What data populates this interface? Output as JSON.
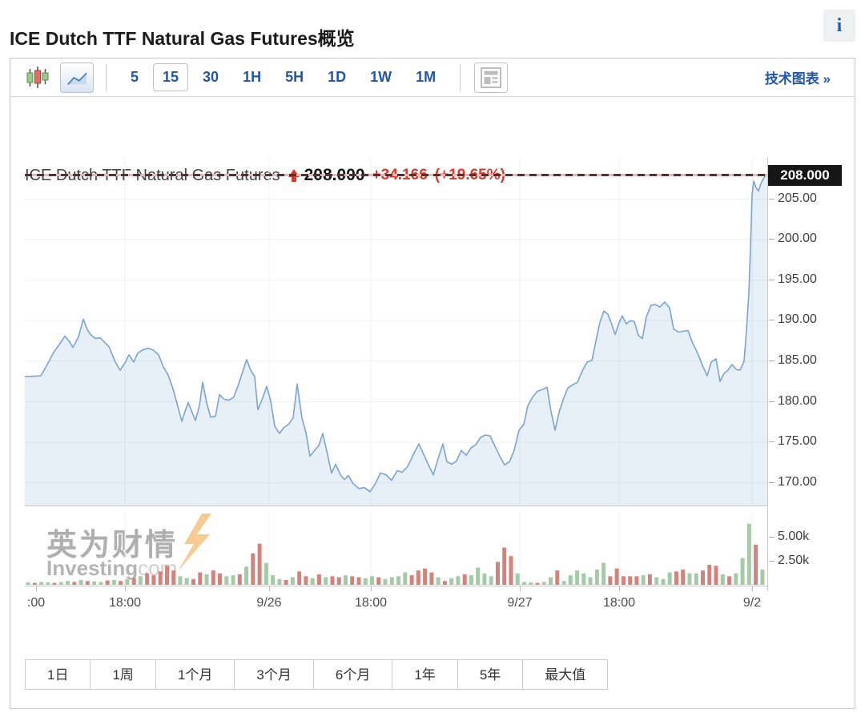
{
  "page": {
    "title": "ICE Dutch TTF Natural Gas Futures概览",
    "info_icon": "i"
  },
  "toolbar": {
    "chart_types": [
      {
        "name": "candlestick",
        "selected": false
      },
      {
        "name": "line",
        "selected": true
      }
    ],
    "intervals": [
      {
        "label": "5",
        "selected": false
      },
      {
        "label": "15",
        "selected": true
      },
      {
        "label": "30",
        "selected": false
      },
      {
        "label": "1H",
        "selected": false
      },
      {
        "label": "5H",
        "selected": false
      },
      {
        "label": "1D",
        "selected": false
      },
      {
        "label": "1W",
        "selected": false
      },
      {
        "label": "1M",
        "selected": false
      }
    ],
    "news_icon": "news-panel",
    "tech_chart_link": "技术图表 »"
  },
  "chart_header": {
    "instrument": "ICE Dutch TTF Natural Gas Futures",
    "direction": "up",
    "price": "208.000",
    "change": "+34.166",
    "change_pct": "(+19.65%)"
  },
  "chart_data": {
    "type": "area",
    "title": "ICE Dutch TTF Natural Gas Futures, 15-minute",
    "ylim": [
      167.2,
      210.2
    ],
    "y_axis": {
      "values": [
        205,
        200,
        195,
        190,
        185,
        180,
        175,
        170
      ],
      "labels": [
        "205.00",
        "200.00",
        "195.00",
        "190.00",
        "185.00",
        "180.00",
        "175.00",
        "170.00"
      ]
    },
    "current": {
      "price": 208.0,
      "label": "208.000"
    },
    "x_axis": {
      "ticks": [
        {
          "x": 14,
          "label": ":00",
          "grid": false
        },
        {
          "x": 125,
          "label": "18:00",
          "grid": true
        },
        {
          "x": 305,
          "label": "9/26",
          "grid": true
        },
        {
          "x": 432,
          "label": "18:00",
          "grid": true
        },
        {
          "x": 618,
          "label": "9/27",
          "grid": true
        },
        {
          "x": 742,
          "label": "18:00",
          "grid": true
        },
        {
          "x": 908,
          "label": "9/2",
          "grid": true
        }
      ]
    },
    "points": [
      [
        0,
        183.1
      ],
      [
        20,
        183.2
      ],
      [
        28,
        184.6
      ],
      [
        36,
        186.1
      ],
      [
        44,
        187.2
      ],
      [
        50,
        188.1
      ],
      [
        56,
        187.4
      ],
      [
        60,
        186.7
      ],
      [
        67,
        188.0
      ],
      [
        73,
        190.2
      ],
      [
        78,
        188.9
      ],
      [
        82,
        188.3
      ],
      [
        88,
        187.8
      ],
      [
        94,
        187.9
      ],
      [
        99,
        187.4
      ],
      [
        105,
        186.8
      ],
      [
        113,
        184.9
      ],
      [
        119,
        183.9
      ],
      [
        125,
        184.8
      ],
      [
        130,
        185.8
      ],
      [
        136,
        184.9
      ],
      [
        141,
        186.0
      ],
      [
        147,
        186.4
      ],
      [
        154,
        186.6
      ],
      [
        160,
        186.4
      ],
      [
        167,
        185.8
      ],
      [
        173,
        184.3
      ],
      [
        179,
        183.3
      ],
      [
        185,
        181.6
      ],
      [
        190,
        179.8
      ],
      [
        196,
        177.6
      ],
      [
        200,
        178.8
      ],
      [
        204,
        179.9
      ],
      [
        208,
        178.9
      ],
      [
        213,
        177.7
      ],
      [
        218,
        179.5
      ],
      [
        222,
        182.4
      ],
      [
        227,
        179.9
      ],
      [
        232,
        178.1
      ],
      [
        238,
        178.2
      ],
      [
        243,
        180.9
      ],
      [
        249,
        180.3
      ],
      [
        255,
        180.2
      ],
      [
        261,
        180.6
      ],
      [
        267,
        182.2
      ],
      [
        273,
        184.0
      ],
      [
        277,
        185.2
      ],
      [
        282,
        183.9
      ],
      [
        287,
        183.1
      ],
      [
        291,
        179.0
      ],
      [
        297,
        180.5
      ],
      [
        302,
        181.9
      ],
      [
        307,
        180.1
      ],
      [
        312,
        177.0
      ],
      [
        318,
        176.1
      ],
      [
        323,
        176.8
      ],
      [
        329,
        177.2
      ],
      [
        335,
        178.0
      ],
      [
        340,
        182.2
      ],
      [
        346,
        178.0
      ],
      [
        351,
        176.2
      ],
      [
        356,
        173.3
      ],
      [
        361,
        173.9
      ],
      [
        367,
        174.6
      ],
      [
        372,
        176.1
      ],
      [
        377,
        173.9
      ],
      [
        383,
        171.2
      ],
      [
        388,
        172.3
      ],
      [
        394,
        171.0
      ],
      [
        399,
        170.4
      ],
      [
        404,
        170.9
      ],
      [
        410,
        169.9
      ],
      [
        417,
        169.3
      ],
      [
        424,
        169.4
      ],
      [
        431,
        168.9
      ],
      [
        437,
        169.8
      ],
      [
        444,
        171.2
      ],
      [
        451,
        171.0
      ],
      [
        458,
        170.3
      ],
      [
        465,
        171.5
      ],
      [
        471,
        171.3
      ],
      [
        478,
        172.0
      ],
      [
        485,
        173.5
      ],
      [
        492,
        174.8
      ],
      [
        498,
        173.5
      ],
      [
        504,
        172.2
      ],
      [
        510,
        171.0
      ],
      [
        516,
        173.0
      ],
      [
        522,
        174.8
      ],
      [
        527,
        172.6
      ],
      [
        533,
        172.3
      ],
      [
        539,
        172.7
      ],
      [
        545,
        174.0
      ],
      [
        551,
        173.4
      ],
      [
        557,
        174.3
      ],
      [
        563,
        174.7
      ],
      [
        569,
        175.6
      ],
      [
        575,
        175.9
      ],
      [
        581,
        175.8
      ],
      [
        587,
        174.5
      ],
      [
        593,
        173.3
      ],
      [
        599,
        172.2
      ],
      [
        605,
        172.6
      ],
      [
        611,
        174.0
      ],
      [
        617,
        176.5
      ],
      [
        623,
        177.2
      ],
      [
        628,
        179.5
      ],
      [
        634,
        180.6
      ],
      [
        640,
        181.3
      ],
      [
        646,
        181.5
      ],
      [
        652,
        181.8
      ],
      [
        657,
        178.8
      ],
      [
        662,
        176.5
      ],
      [
        667,
        178.7
      ],
      [
        673,
        180.5
      ],
      [
        678,
        181.7
      ],
      [
        684,
        182.1
      ],
      [
        690,
        182.4
      ],
      [
        696,
        183.8
      ],
      [
        702,
        184.9
      ],
      [
        708,
        185.1
      ],
      [
        713,
        187.5
      ],
      [
        718,
        189.8
      ],
      [
        723,
        191.2
      ],
      [
        728,
        190.8
      ],
      [
        733,
        189.5
      ],
      [
        737,
        188.3
      ],
      [
        742,
        189.8
      ],
      [
        746,
        190.6
      ],
      [
        751,
        189.6
      ],
      [
        756,
        190.0
      ],
      [
        761,
        189.9
      ],
      [
        766,
        188.2
      ],
      [
        771,
        187.8
      ],
      [
        776,
        190.5
      ],
      [
        782,
        191.9
      ],
      [
        787,
        192.0
      ],
      [
        793,
        191.7
      ],
      [
        799,
        192.3
      ],
      [
        805,
        191.6
      ],
      [
        810,
        189.0
      ],
      [
        816,
        188.6
      ],
      [
        822,
        188.7
      ],
      [
        828,
        188.8
      ],
      [
        834,
        187.2
      ],
      [
        840,
        186.0
      ],
      [
        846,
        184.5
      ],
      [
        852,
        183.2
      ],
      [
        857,
        184.9
      ],
      [
        863,
        185.3
      ],
      [
        868,
        182.5
      ],
      [
        873,
        183.5
      ],
      [
        878,
        183.9
      ],
      [
        883,
        184.6
      ],
      [
        888,
        184.0
      ],
      [
        893,
        183.9
      ],
      [
        898,
        185.0
      ],
      [
        901,
        188.8
      ],
      [
        904,
        193.5
      ],
      [
        906,
        199.0
      ],
      [
        908,
        205.5
      ],
      [
        910,
        207.2
      ],
      [
        913,
        206.4
      ],
      [
        916,
        206.0
      ],
      [
        919,
        206.9
      ],
      [
        922,
        207.5
      ],
      [
        925,
        207.9
      ],
      [
        928,
        208.0
      ]
    ],
    "volume": {
      "axis_labels": [
        {
          "label": "5.00k",
          "value": 5.0
        },
        {
          "label": "2.50k",
          "value": 2.5
        }
      ],
      "ylim": [
        0,
        7.1
      ],
      "bars": [
        [
          0.25,
          "g"
        ],
        [
          0.2,
          "r"
        ],
        [
          0.3,
          "g"
        ],
        [
          0.25,
          "g"
        ],
        [
          0.2,
          "r"
        ],
        [
          0.3,
          "g"
        ],
        [
          0.4,
          "g"
        ],
        [
          0.3,
          "r"
        ],
        [
          0.5,
          "g"
        ],
        [
          0.4,
          "r"
        ],
        [
          0.35,
          "g"
        ],
        [
          0.3,
          "g"
        ],
        [
          0.45,
          "r"
        ],
        [
          0.5,
          "g"
        ],
        [
          0.4,
          "r"
        ],
        [
          0.6,
          "g"
        ],
        [
          0.7,
          "r"
        ],
        [
          0.9,
          "g"
        ],
        [
          1.2,
          "r"
        ],
        [
          1.0,
          "r"
        ],
        [
          1.4,
          "r"
        ],
        [
          2.0,
          "r"
        ],
        [
          1.5,
          "r"
        ],
        [
          0.9,
          "g"
        ],
        [
          0.7,
          "g"
        ],
        [
          0.6,
          "r"
        ],
        [
          1.3,
          "r"
        ],
        [
          1.1,
          "g"
        ],
        [
          1.5,
          "r"
        ],
        [
          1.2,
          "r"
        ],
        [
          0.9,
          "g"
        ],
        [
          1.0,
          "g"
        ],
        [
          1.1,
          "r"
        ],
        [
          1.9,
          "g"
        ],
        [
          3.3,
          "r"
        ],
        [
          4.3,
          "r"
        ],
        [
          2.3,
          "g"
        ],
        [
          1.0,
          "g"
        ],
        [
          0.6,
          "g"
        ],
        [
          0.5,
          "r"
        ],
        [
          0.8,
          "g"
        ],
        [
          1.4,
          "r"
        ],
        [
          0.9,
          "r"
        ],
        [
          0.7,
          "g"
        ],
        [
          1.1,
          "r"
        ],
        [
          0.8,
          "g"
        ],
        [
          0.9,
          "r"
        ],
        [
          0.8,
          "r"
        ],
        [
          1.0,
          "g"
        ],
        [
          0.9,
          "r"
        ],
        [
          0.8,
          "r"
        ],
        [
          0.7,
          "g"
        ],
        [
          0.9,
          "g"
        ],
        [
          0.8,
          "r"
        ],
        [
          0.6,
          "g"
        ],
        [
          0.8,
          "g"
        ],
        [
          0.9,
          "g"
        ],
        [
          1.3,
          "g"
        ],
        [
          1.0,
          "r"
        ],
        [
          1.5,
          "r"
        ],
        [
          1.7,
          "r"
        ],
        [
          1.3,
          "r"
        ],
        [
          0.8,
          "g"
        ],
        [
          0.4,
          "r"
        ],
        [
          0.7,
          "g"
        ],
        [
          0.9,
          "g"
        ],
        [
          1.1,
          "r"
        ],
        [
          1.0,
          "g"
        ],
        [
          1.8,
          "g"
        ],
        [
          1.2,
          "g"
        ],
        [
          0.9,
          "g"
        ],
        [
          2.4,
          "r"
        ],
        [
          3.9,
          "r"
        ],
        [
          3.0,
          "r"
        ],
        [
          1.2,
          "g"
        ],
        [
          0.3,
          "g"
        ],
        [
          0.25,
          "g"
        ],
        [
          0.2,
          "r"
        ],
        [
          0.3,
          "g"
        ],
        [
          0.8,
          "g"
        ],
        [
          1.5,
          "r"
        ],
        [
          0.4,
          "g"
        ],
        [
          1.0,
          "g"
        ],
        [
          1.5,
          "g"
        ],
        [
          1.2,
          "g"
        ],
        [
          0.8,
          "g"
        ],
        [
          1.6,
          "g"
        ],
        [
          2.3,
          "g"
        ],
        [
          0.9,
          "r"
        ],
        [
          1.7,
          "r"
        ],
        [
          0.9,
          "r"
        ],
        [
          0.9,
          "r"
        ],
        [
          0.9,
          "r"
        ],
        [
          1.0,
          "g"
        ],
        [
          1.1,
          "r"
        ],
        [
          0.8,
          "g"
        ],
        [
          0.6,
          "g"
        ],
        [
          1.3,
          "g"
        ],
        [
          1.4,
          "r"
        ],
        [
          1.6,
          "r"
        ],
        [
          1.2,
          "g"
        ],
        [
          1.2,
          "g"
        ],
        [
          1.5,
          "r"
        ],
        [
          2.1,
          "r"
        ],
        [
          2.0,
          "r"
        ],
        [
          1.1,
          "g"
        ],
        [
          0.9,
          "r"
        ],
        [
          1.2,
          "g"
        ],
        [
          2.8,
          "g"
        ],
        [
          6.4,
          "g"
        ],
        [
          4.2,
          "r"
        ],
        [
          1.6,
          "g"
        ]
      ]
    },
    "watermark": {
      "cn": "英为财情",
      "en": "Investing",
      "en_suffix": "com"
    }
  },
  "periods": [
    {
      "label": "1日"
    },
    {
      "label": "1周"
    },
    {
      "label": "1个月"
    },
    {
      "label": "3个月"
    },
    {
      "label": "6个月"
    },
    {
      "label": "1年"
    },
    {
      "label": "5年"
    },
    {
      "label": "最大值"
    }
  ],
  "colors": {
    "accent_blue": "#2257a5",
    "change_red": "#d93a2e",
    "line_blue": "#7aa4d4",
    "area_fill": "rgba(122,164,212,0.18)",
    "grid": "#f0f0f0",
    "volume_green": "#a5cba6",
    "volume_red": "#d2837c",
    "tag_bg": "#161616",
    "dash_dark": "#4a3734",
    "dash_pink": "#f3b7ae"
  }
}
